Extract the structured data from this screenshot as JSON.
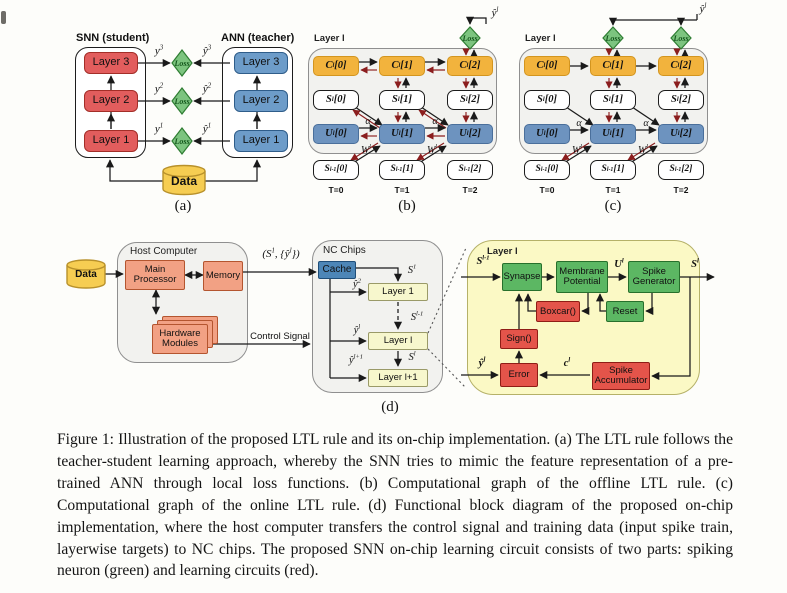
{
  "labels": {
    "loss": "Loss"
  },
  "panel_a": {
    "snn_title": "SNN (student)",
    "ann_title": "ANN (teacher)",
    "snn_layers": [
      "Layer 3",
      "Layer 2",
      "Layer 1"
    ],
    "ann_layers": [
      "Layer 3",
      "Layer 2",
      "Layer 1"
    ],
    "y_labels": [
      "y^3",
      "y^2",
      "y^1"
    ],
    "yhat_labels": [
      "ŷ^3",
      "ŷ^2",
      "ŷ^1"
    ],
    "data_label": "Data",
    "caption": "(a)"
  },
  "panel_b": {
    "layer_header": "Layer l",
    "c_boxes": [
      "C^l[0]",
      "C^l[1]",
      "C^l[2]"
    ],
    "s_boxes": [
      "S^l[0]",
      "S^l[1]",
      "S^l[2]"
    ],
    "u_boxes": [
      "U^l[0]",
      "U^l[1]",
      "U^l[2]"
    ],
    "sprev_boxes": [
      "S^{l-1}[0]",
      "S^{l-1}[1]",
      "S^{l-1}[2]"
    ],
    "t_labels": [
      "T=0",
      "T=1",
      "T=2"
    ],
    "alpha": "α",
    "weight": "W^l",
    "yhat": "ŷ^l",
    "caption": "(b)"
  },
  "panel_c": {
    "layer_header": "Layer l",
    "c_boxes": [
      "C^l[0]",
      "C^l[1]",
      "C^l[2]"
    ],
    "s_boxes": [
      "S^l[0]",
      "S^l[1]",
      "S^l[2]"
    ],
    "u_boxes": [
      "U^l[0]",
      "U^l[1]",
      "U^l[2]"
    ],
    "sprev_boxes": [
      "S^{l-1}[0]",
      "S^{l-1}[1]",
      "S^{l-1}[2]"
    ],
    "t_labels": [
      "T=0",
      "T=1",
      "T=2"
    ],
    "alpha": "α",
    "weight": "W^l",
    "yhat": "ŷ^l",
    "caption": "(c)"
  },
  "panel_d": {
    "host_title": "Host Computer",
    "data_label": "Data",
    "main_processor": "Main Processor",
    "memory": "Memory",
    "hardware_modules": "Hardware Modules",
    "signal_label": "(S^1, {ŷ^l})",
    "control_label": "Control Signal",
    "nc_title": "NC Chips",
    "cache": "Cache",
    "layers": [
      "Layer 1",
      "Layer l",
      "Layer l+1"
    ],
    "s1": "S^1",
    "yhat2": "ŷ^2",
    "yhatl": "ŷ^l",
    "yhatl1": "ŷ^{l+1}",
    "sprev": "S^{l-1}",
    "sl": "S^l",
    "caption": "(d)",
    "circuit": {
      "title": "Layer l",
      "sprev_in": "S^{l-1}",
      "synapse": "Synapse",
      "membrane": "Membrane Potential",
      "spike_gen": "Spike Generator",
      "boxcar": "Boxcar()",
      "reset": "Reset",
      "sign": "Sign()",
      "error": "Error",
      "spike_acc": "Spike Accumulator",
      "ul": "U^l",
      "sl_out": "S^l",
      "yhat_in": "ŷ^l",
      "cl": "c^l"
    }
  },
  "figure_caption": "Figure 1: Illustration of the proposed LTL rule and its on-chip implementation. (a) The LTL rule follows the teacher-student learning approach, whereby the SNN tries to mimic the feature representation of a pre-trained ANN through local loss functions. (b) Computational graph of the offline LTL rule. (c) Computational graph of the online LTL rule. (d) Functional block diagram of the proposed on-chip implementation, where the host computer transfers the control signal and training data (input spike train, layerwise targets) to NC chips. The proposed SNN on-chip learning circuit consists of two parts: spiking neuron (green) and learning circuits (red).",
  "colors": {
    "red-box": "#e25d5d",
    "red-box-border": "#a32e28",
    "blue-box": "#6d9cc9",
    "blue-box-border": "#2f5d8a",
    "loss-green": "#7cc47f",
    "loss-green-border": "#2e7d32",
    "loss-text": "#14571c",
    "data-yellow": "#f6cd52",
    "data-yellow-border": "#b8912b",
    "c-orange": "#f2b33d",
    "c-orange-border": "#d3951f",
    "u-blue": "#6d93bf",
    "u-blue-border": "#4a6f9b",
    "panel-gray": "#f2f2ef",
    "panel-border": "#8f8f8f",
    "salmon": "#f2a184",
    "salmon-border": "#b4552f",
    "cache-blue": "#4d86b7",
    "cache-border": "#1f4e79",
    "chip-yellow": "#f7f7cd",
    "chip-yellow-border": "#9a9a68",
    "big-panel-yellow": "#fbf9c5",
    "big-panel-border": "#b5b168",
    "circuit-green": "#5cb763",
    "circuit-green-border": "#27702c",
    "circuit-red": "#e4544a",
    "circuit-red-border": "#8f1d16",
    "wire-black": "#1a1a1a",
    "wire-red": "#8b1e1e"
  }
}
